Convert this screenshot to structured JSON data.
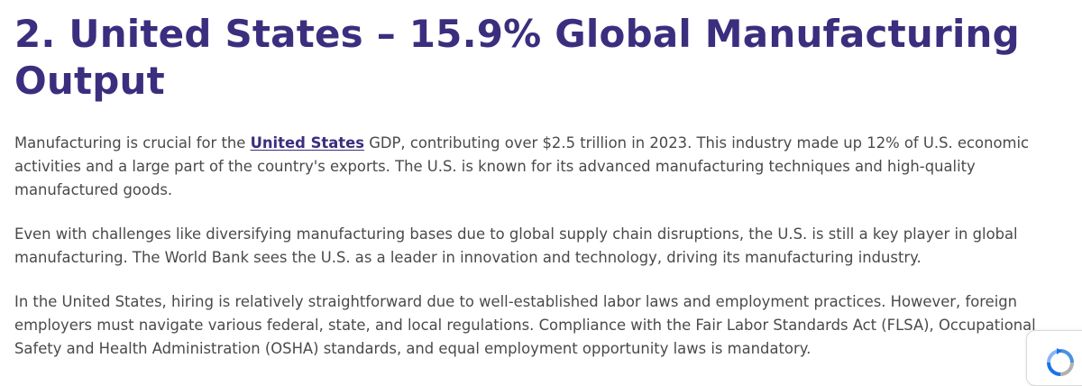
{
  "article": {
    "heading": "2. United States – 15.9% Global Manufacturing Output",
    "paragraph1": {
      "before_link": "Manufacturing is crucial for the ",
      "link_text": "United States",
      "after_link": " GDP, contributing over $2.5 trillion in 2023. This industry made up 12% of U.S. economic activities and a large part of the country's exports. The U.S. is known for its advanced manufacturing techniques and high-quality manufactured goods."
    },
    "paragraph2": "Even with challenges like diversifying manufacturing bases due to global supply chain disruptions, the U.S. is still a key player in global manufacturing. The World Bank sees the U.S. as a leader in innovation and technology, driving its manufacturing industry.",
    "paragraph3": "In the United States, hiring is relatively straightforward due to well-established labor laws and employment practices. However, foreign employers must navigate various federal, state, and local regulations. Compliance with the Fair Labor Standards Act (FLSA), Occupational Safety and Health Administration (OSHA) standards, and equal employment opportunity laws is mandatory."
  },
  "colors": {
    "heading": "#3b2e7e",
    "body_text": "#4a4a4a",
    "link": "#3b2e7e"
  },
  "widget": {
    "icon": "recaptcha-icon"
  }
}
